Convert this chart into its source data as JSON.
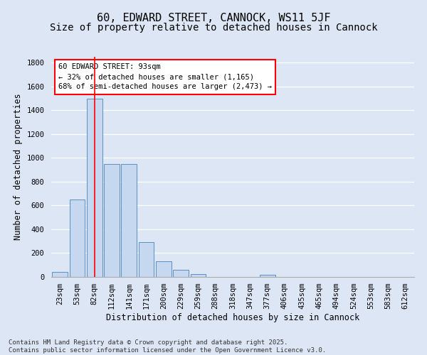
{
  "title1": "60, EDWARD STREET, CANNOCK, WS11 5JF",
  "title2": "Size of property relative to detached houses in Cannock",
  "xlabel": "Distribution of detached houses by size in Cannock",
  "ylabel": "Number of detached properties",
  "categories": [
    "23sqm",
    "53sqm",
    "82sqm",
    "112sqm",
    "141sqm",
    "171sqm",
    "200sqm",
    "229sqm",
    "259sqm",
    "288sqm",
    "318sqm",
    "347sqm",
    "377sqm",
    "406sqm",
    "435sqm",
    "465sqm",
    "494sqm",
    "524sqm",
    "553sqm",
    "583sqm",
    "612sqm"
  ],
  "values": [
    40,
    650,
    1500,
    950,
    950,
    295,
    130,
    60,
    25,
    0,
    0,
    0,
    15,
    0,
    0,
    0,
    0,
    0,
    0,
    0,
    0
  ],
  "bar_color": "#c5d8f0",
  "bar_edge_color": "#5a8fc0",
  "annotation_box_text": "60 EDWARD STREET: 93sqm\n← 32% of detached houses are smaller (1,165)\n68% of semi-detached houses are larger (2,473) →",
  "vline_x": 2,
  "vline_color": "red",
  "ylim": [
    0,
    1850
  ],
  "yticks": [
    0,
    200,
    400,
    600,
    800,
    1000,
    1200,
    1400,
    1600,
    1800
  ],
  "background_color": "#dce6f5",
  "plot_bg_color": "#dce6f5",
  "grid_color": "#ffffff",
  "footnote": "Contains HM Land Registry data © Crown copyright and database right 2025.\nContains public sector information licensed under the Open Government Licence v3.0.",
  "title_fontsize": 11,
  "subtitle_fontsize": 10,
  "label_fontsize": 8.5,
  "tick_fontsize": 7.5,
  "annot_fontsize": 7.5,
  "footnote_fontsize": 6.5
}
